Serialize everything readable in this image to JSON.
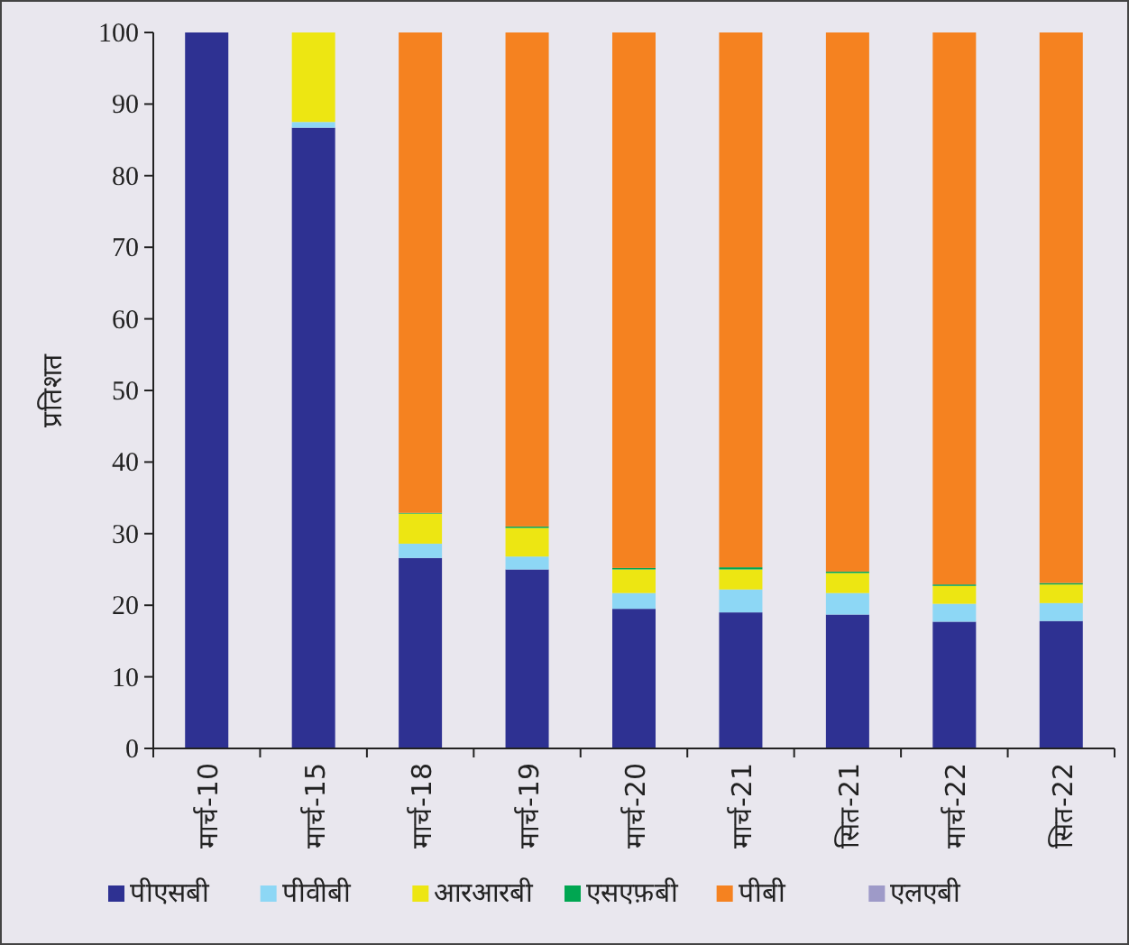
{
  "chart_data": {
    "type": "bar",
    "stacked": true,
    "ylabel": "प्रतिशत",
    "categories": [
      "मार्च-10",
      "मार्च-15",
      "मार्च-18",
      "मार्च-19",
      "मार्च-20",
      "मार्च-21",
      "सित-21",
      "मार्च-22",
      "सित-22"
    ],
    "ylim": [
      0,
      100
    ],
    "yticks": [
      0,
      10,
      20,
      30,
      40,
      50,
      60,
      70,
      80,
      90,
      100
    ],
    "grid": false,
    "legend": "bottom",
    "series": [
      {
        "name": "पीएसबी",
        "color": "#2e3192",
        "values": [
          100,
          86.7,
          26.6,
          25.0,
          19.5,
          19.0,
          18.7,
          17.7,
          17.8
        ]
      },
      {
        "name": "पीवीबी",
        "color": "#8dd7f5",
        "values": [
          0,
          0.8,
          2.0,
          1.8,
          2.2,
          3.2,
          3.0,
          2.5,
          2.5
        ]
      },
      {
        "name": "आरआरबी",
        "color": "#ede612",
        "values": [
          0,
          12.5,
          4.2,
          4.0,
          3.3,
          2.8,
          2.8,
          2.5,
          2.6
        ]
      },
      {
        "name": "एसएफ़बी",
        "color": "#00a651",
        "values": [
          0,
          0,
          0.1,
          0.2,
          0.2,
          0.3,
          0.2,
          0.2,
          0.2
        ]
      },
      {
        "name": "पीबी",
        "color": "#f58220",
        "values": [
          0,
          0,
          67.1,
          69.0,
          74.8,
          74.7,
          75.3,
          77.1,
          76.9
        ]
      },
      {
        "name": "एलएबी",
        "color": "#9e9ac8",
        "values": [
          0,
          0,
          0,
          0,
          0,
          0,
          0,
          0,
          0
        ]
      }
    ]
  }
}
